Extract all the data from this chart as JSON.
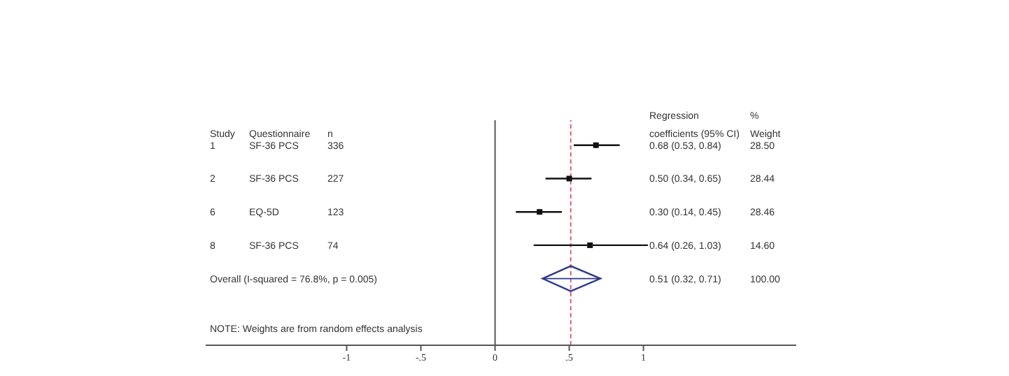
{
  "chart_data": {
    "type": "scatter",
    "orientation": "horizontal",
    "categories": [
      "1",
      "2",
      "6",
      "8",
      "Overall  (I-squared = 76.8%, p = 0.005)"
    ],
    "series": [
      {
        "marker": "square",
        "color": "#111111",
        "values": [
          0.68,
          0.5,
          0.3,
          0.64,
          null
        ],
        "errors": [
          [
            0.53,
            0.84
          ],
          [
            0.34,
            0.65
          ],
          [
            0.14,
            0.45
          ],
          [
            0.26,
            1.03
          ],
          null
        ]
      },
      {
        "marker": "diamond",
        "color": "#2e3a87",
        "values": [
          null,
          null,
          null,
          null,
          0.51
        ],
        "errors": [
          null,
          null,
          null,
          null,
          [
            0.32,
            0.71
          ]
        ]
      }
    ],
    "xlim": [
      -1.95,
      2.03
    ],
    "xticks": [
      -1,
      {
        "value": -0.5,
        "label": "-.5"
      },
      0,
      {
        "value": 0.5,
        "label": ".5"
      },
      1
    ],
    "ref_lines": [
      {
        "axis": "x",
        "value": 0,
        "color": "#555555",
        "line_style": "solid"
      },
      {
        "axis": "x",
        "value": 0.51,
        "color": "#d9607a",
        "line_style": "dashed"
      }
    ],
    "annotations": [
      "Study",
      "Questionnaire",
      "n",
      "Regression\ncoefficients (95% CI)",
      "%\nWeight",
      "SF-36 PCS",
      "336",
      "0.68 (0.53, 0.84)",
      "28.50",
      "SF-36 PCS",
      "227",
      "0.50 (0.34, 0.65)",
      "28.44",
      "EQ-5D",
      "123",
      "0.30 (0.14, 0.45)",
      "28.46",
      "SF-36 PCS",
      "74",
      "0.64 (0.26, 1.03)",
      "14.60",
      "0.51 (0.32, 0.71)",
      "100.00",
      "NOTE: Weights are from random effects analysis"
    ]
  }
}
